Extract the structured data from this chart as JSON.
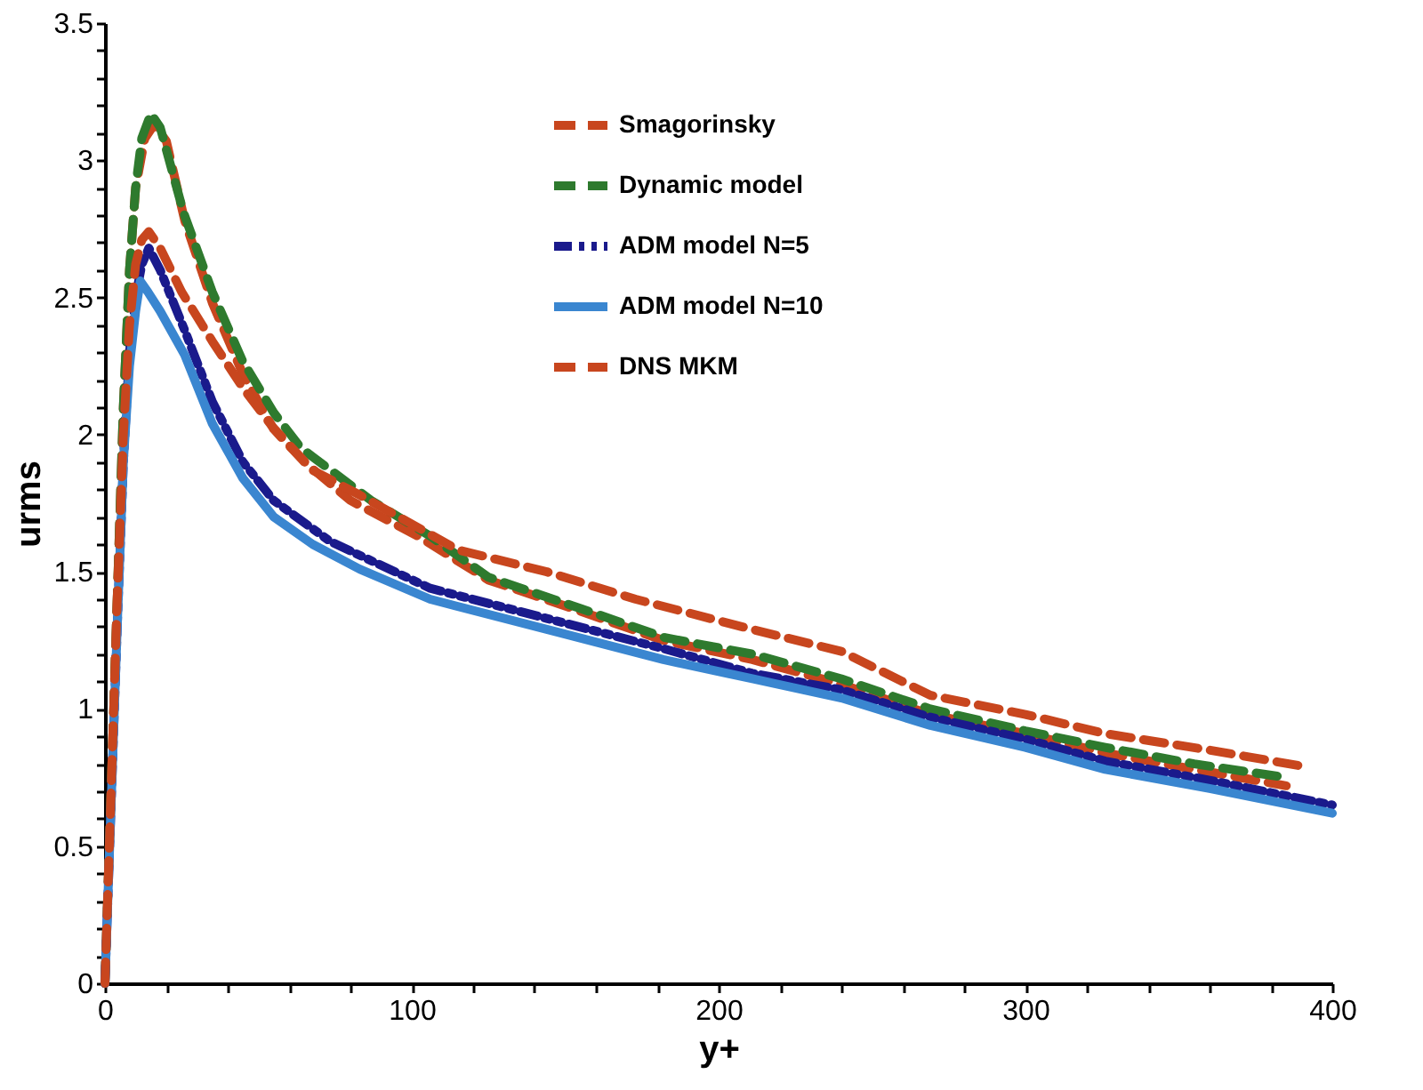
{
  "chart_data": {
    "type": "line",
    "xlabel": "y+",
    "ylabel": "urms",
    "xlim": [
      0,
      400
    ],
    "ylim": [
      0,
      3.5
    ],
    "xticks": [
      0,
      {
        "value": 20,
        "label": null
      },
      {
        "value": 40,
        "label": null
      },
      {
        "value": 60,
        "label": null
      },
      {
        "value": 80,
        "label": null
      },
      100,
      {
        "value": 120,
        "label": null
      },
      {
        "value": 140,
        "label": null
      },
      {
        "value": 160,
        "label": null
      },
      {
        "value": 180,
        "label": null
      },
      200,
      {
        "value": 220,
        "label": null
      },
      {
        "value": 240,
        "label": null
      },
      {
        "value": 260,
        "label": null
      },
      {
        "value": 280,
        "label": null
      },
      300,
      {
        "value": 320,
        "label": null
      },
      {
        "value": 340,
        "label": null
      },
      {
        "value": 360,
        "label": null
      },
      {
        "value": 380,
        "label": null
      },
      400
    ],
    "yticks": [
      0,
      {
        "value": 0.1,
        "label": null
      },
      {
        "value": 0.2,
        "label": null
      },
      {
        "value": 0.3,
        "label": null
      },
      {
        "value": 0.4,
        "label": null
      },
      0.5,
      {
        "value": 0.6,
        "label": null
      },
      {
        "value": 0.7,
        "label": null
      },
      {
        "value": 0.8,
        "label": null
      },
      {
        "value": 0.9,
        "label": null
      },
      1,
      {
        "value": 1.1,
        "label": null
      },
      {
        "value": 1.2,
        "label": null
      },
      {
        "value": 1.3,
        "label": null
      },
      {
        "value": 1.4,
        "label": null
      },
      1.5,
      {
        "value": 1.6,
        "label": null
      },
      {
        "value": 1.7,
        "label": null
      },
      {
        "value": 1.8,
        "label": null
      },
      {
        "value": 1.9,
        "label": null
      },
      2,
      {
        "value": 2.1,
        "label": null
      },
      {
        "value": 2.2,
        "label": null
      },
      {
        "value": 2.3,
        "label": null
      },
      {
        "value": 2.4,
        "label": null
      },
      2.5,
      {
        "value": 2.6,
        "label": null
      },
      {
        "value": 2.7,
        "label": null
      },
      {
        "value": 2.8,
        "label": null
      },
      {
        "value": 2.9,
        "label": null
      },
      3,
      {
        "value": 3.1,
        "label": null
      },
      {
        "value": 3.2,
        "label": null
      },
      {
        "value": 3.3,
        "label": null
      },
      {
        "value": 3.4,
        "label": null
      },
      3.5
    ],
    "grid": false,
    "legend": "top right",
    "marker": "none",
    "series": [
      {
        "name": "Smagorinsky",
        "color": "#c8461e",
        "line_style": "dashed",
        "x": [
          0,
          2,
          4,
          6,
          8,
          10,
          13,
          16,
          20,
          26,
          35,
          45,
          55,
          65,
          80,
          102,
          125,
          154,
          182,
          211,
          240,
          269,
          300,
          326,
          355,
          385
        ],
        "values": [
          0,
          0.7,
          1.4,
          2.1,
          2.6,
          2.9,
          3.08,
          3.13,
          3.07,
          2.78,
          2.48,
          2.22,
          2.02,
          1.9,
          1.76,
          1.63,
          1.47,
          1.36,
          1.25,
          1.18,
          1.09,
          0.98,
          0.91,
          0.84,
          0.78,
          0.72
        ]
      },
      {
        "name": "Dynamic model",
        "color": "#2e7a2e",
        "line_style": "dashed",
        "x": [
          0,
          2,
          4,
          6,
          8,
          10,
          12,
          15,
          18,
          25.6,
          35,
          44.8,
          55,
          64,
          86.8,
          106,
          125,
          154,
          182.5,
          211,
          240,
          269,
          300,
          326,
          355,
          385
        ],
        "values": [
          0,
          0.7,
          1.4,
          2.1,
          2.6,
          2.9,
          3.08,
          3.17,
          3.12,
          2.81,
          2.52,
          2.27,
          2.08,
          1.95,
          1.76,
          1.63,
          1.48,
          1.37,
          1.26,
          1.2,
          1.11,
          1.0,
          0.92,
          0.86,
          0.8,
          0.75
        ]
      },
      {
        "name": "ADM model N=5",
        "color": "#1a1a8c",
        "line_style": "dotted",
        "x": [
          0,
          2,
          4,
          6,
          8,
          10,
          12,
          14.3,
          18,
          26,
          35,
          45,
          55,
          73.5,
          106,
          144,
          182,
          211,
          240,
          269,
          300,
          326,
          360,
          400
        ],
        "values": [
          0,
          0.65,
          1.3,
          1.9,
          2.3,
          2.5,
          2.62,
          2.68,
          2.6,
          2.38,
          2.12,
          1.9,
          1.76,
          1.61,
          1.44,
          1.33,
          1.22,
          1.13,
          1.07,
          0.97,
          0.89,
          0.81,
          0.74,
          0.65
        ]
      },
      {
        "name": "ADM model N=10",
        "color": "#3a86d0",
        "line_style": "solid",
        "x": [
          0,
          2,
          4,
          6,
          8,
          10,
          11.5,
          14,
          18,
          26,
          35,
          45,
          55,
          67.7,
          83,
          106,
          144,
          182,
          211,
          240,
          269,
          300,
          326,
          360,
          400
        ],
        "values": [
          0,
          0.65,
          1.3,
          1.9,
          2.25,
          2.45,
          2.56,
          2.52,
          2.45,
          2.29,
          2.04,
          1.84,
          1.7,
          1.6,
          1.51,
          1.4,
          1.29,
          1.18,
          1.11,
          1.04,
          0.94,
          0.86,
          0.78,
          0.71,
          0.62
        ]
      },
      {
        "name": "DNS MKM",
        "color": "#c8461e",
        "line_style": "dashed",
        "x": [
          0,
          2,
          4,
          6,
          8,
          10,
          12,
          14.3,
          18,
          25,
          35,
          45,
          54.5,
          67.7,
          83,
          115,
          144,
          173,
          211,
          240,
          269,
          300,
          326,
          360,
          391
        ],
        "values": [
          0,
          0.7,
          1.4,
          2.0,
          2.4,
          2.62,
          2.71,
          2.74,
          2.68,
          2.52,
          2.34,
          2.17,
          2.03,
          1.87,
          1.78,
          1.58,
          1.5,
          1.4,
          1.29,
          1.21,
          1.05,
          0.98,
          0.91,
          0.85,
          0.79
        ]
      }
    ]
  }
}
